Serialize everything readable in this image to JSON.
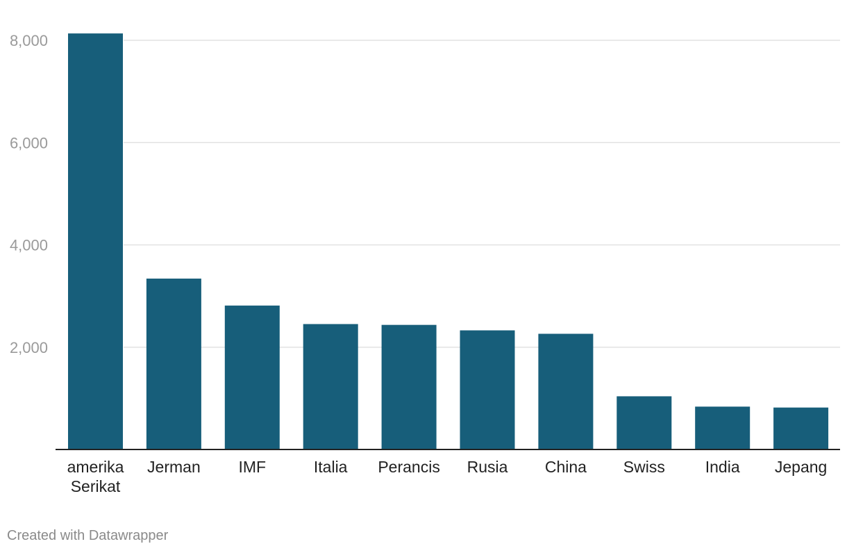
{
  "colors": {
    "bar": "#175e7a",
    "grid": "#e2e2e2",
    "axis": "#222222"
  },
  "chart_data": {
    "type": "bar",
    "categories": [
      "amerika Serikat",
      "Jerman",
      "IMF",
      "Italia",
      "Perancis",
      "Rusia",
      "China",
      "Swiss",
      "India",
      "Jepang"
    ],
    "category_lines": [
      [
        "amerika",
        "Serikat"
      ],
      [
        "Jerman"
      ],
      [
        "IMF"
      ],
      [
        "Italia"
      ],
      [
        "Perancis"
      ],
      [
        "Rusia"
      ],
      [
        "China"
      ],
      [
        "Swiss"
      ],
      [
        "India"
      ],
      [
        "Jepang"
      ]
    ],
    "values": [
      8134,
      3341,
      2814,
      2452,
      2436,
      2329,
      2262,
      1040,
      838,
      820
    ],
    "ylim": [
      0,
      8000
    ],
    "yticks": [
      2000,
      4000,
      6000,
      8000
    ],
    "ytick_labels": [
      "2,000",
      "4,000",
      "6,000",
      "8,000"
    ],
    "grid": true,
    "title": "",
    "xlabel": "",
    "ylabel": ""
  },
  "footer": {
    "credit": "Created with Datawrapper"
  }
}
